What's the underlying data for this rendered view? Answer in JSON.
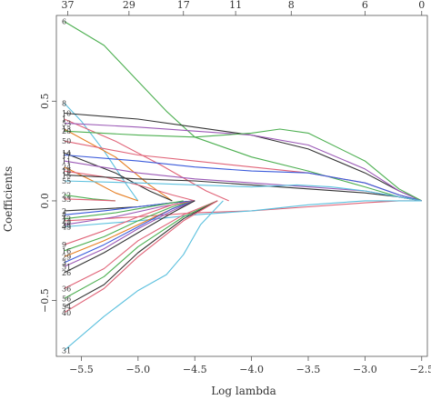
{
  "chart_data": {
    "type": "line",
    "title": "",
    "xlabel": "Log lambda",
    "ylabel": "Coefficients",
    "xlim": [
      -5.72,
      -2.45
    ],
    "ylim": [
      -0.78,
      0.93
    ],
    "x_ticks": [
      -5.5,
      -5.0,
      -4.5,
      -4.0,
      -3.5,
      -3.0,
      -2.5
    ],
    "x_tick_labels": [
      "−5.5",
      "−5.0",
      "−4.5",
      "−4.0",
      "−3.5",
      "−3.0",
      "−2.5"
    ],
    "y_ticks": [
      -0.5,
      0.0,
      0.5
    ],
    "y_tick_labels": [
      "−0.5",
      "0.0",
      "0.5"
    ],
    "top_axis": {
      "positions": [
        -5.62,
        -5.08,
        -4.6,
        -4.14,
        -3.65,
        -3.0,
        -2.5
      ],
      "labels": [
        "37",
        "29",
        "17",
        "11",
        "8",
        "6",
        "0"
      ]
    },
    "grid": false,
    "legend": "none",
    "series": [
      {
        "label": "6",
        "color": "#4caf50",
        "x": [
          -5.65,
          -5.3,
          -5.0,
          -4.75,
          -4.5,
          -4.0,
          -3.5,
          -3.0,
          -2.7,
          -2.5
        ],
        "y": [
          0.9,
          0.78,
          0.6,
          0.45,
          0.32,
          0.22,
          0.15,
          0.07,
          0.02,
          0.0
        ]
      },
      {
        "label": "8",
        "color": "#5bc0de",
        "x": [
          -5.65,
          -5.5,
          -5.3,
          -5.1,
          -5.0
        ],
        "y": [
          0.49,
          0.4,
          0.25,
          0.08,
          0.0
        ]
      },
      {
        "label": "10",
        "color": "#333333",
        "x": [
          -5.65,
          -5.0,
          -4.5,
          -4.0,
          -3.5,
          -3.0,
          -2.7,
          -2.5
        ],
        "y": [
          0.44,
          0.41,
          0.37,
          0.33,
          0.26,
          0.14,
          0.05,
          0.0
        ]
      },
      {
        "label": "1",
        "color": "#e06377",
        "x": [
          -5.65,
          -5.2,
          -4.8,
          -4.4,
          -4.2
        ],
        "y": [
          0.41,
          0.3,
          0.18,
          0.05,
          0.0
        ]
      },
      {
        "label": "53",
        "color": "#9b59b6",
        "x": [
          -5.65,
          -5.0,
          -4.5,
          -4.0,
          -3.5,
          -3.0,
          -2.7,
          -2.5
        ],
        "y": [
          0.39,
          0.37,
          0.35,
          0.33,
          0.28,
          0.16,
          0.05,
          0.0
        ]
      },
      {
        "label": "13",
        "color": "#e67e22",
        "x": [
          -5.65,
          -5.2,
          -4.9,
          -4.7
        ],
        "y": [
          0.36,
          0.22,
          0.08,
          0.0
        ]
      },
      {
        "label": "20",
        "color": "#4caf50",
        "x": [
          -5.65,
          -5.0,
          -4.5,
          -4.0,
          -3.75,
          -3.5,
          -3.0,
          -2.7,
          -2.5
        ],
        "y": [
          0.35,
          0.33,
          0.32,
          0.34,
          0.36,
          0.34,
          0.2,
          0.06,
          0.0
        ]
      },
      {
        "label": "50",
        "color": "#e06377",
        "x": [
          -5.65,
          -5.0,
          -4.5,
          -4.0,
          -3.5,
          -3.0,
          -2.7,
          -2.5
        ],
        "y": [
          0.3,
          0.23,
          0.2,
          0.17,
          0.14,
          0.09,
          0.03,
          0.0
        ]
      },
      {
        "label": "14",
        "color": "#333333",
        "x": [
          -5.65,
          -5.2,
          -4.9,
          -4.7
        ],
        "y": [
          0.24,
          0.14,
          0.05,
          0.0
        ]
      },
      {
        "label": "17",
        "color": "#3b5bdb",
        "x": [
          -5.65,
          -5.0,
          -4.5,
          -4.0,
          -3.5,
          -3.0,
          -2.7,
          -2.5
        ],
        "y": [
          0.23,
          0.2,
          0.17,
          0.15,
          0.14,
          0.09,
          0.03,
          0.0
        ]
      },
      {
        "label": "11",
        "color": "#9b59b6",
        "x": [
          -5.65,
          -5.0,
          -4.5,
          -4.0,
          -3.5,
          -3.0,
          -2.7,
          -2.5
        ],
        "y": [
          0.2,
          0.14,
          0.11,
          0.09,
          0.07,
          0.05,
          0.02,
          0.0
        ]
      },
      {
        "label": "24",
        "color": "#e67e22",
        "x": [
          -5.65,
          -5.4,
          -5.2,
          -5.0
        ],
        "y": [
          0.17,
          0.1,
          0.04,
          0.0
        ]
      },
      {
        "label": "18",
        "color": "#e06377",
        "x": [
          -5.65,
          -5.3,
          -5.0,
          -4.7,
          -4.5
        ],
        "y": [
          0.15,
          0.12,
          0.08,
          0.03,
          0.0
        ]
      },
      {
        "label": "15",
        "color": "#333333",
        "x": [
          -5.65,
          -5.0,
          -4.5,
          -4.0,
          -3.5,
          -3.0,
          -2.7,
          -2.5
        ],
        "y": [
          0.13,
          0.11,
          0.1,
          0.08,
          0.06,
          0.04,
          0.02,
          0.0
        ]
      },
      {
        "label": "55",
        "color": "#5bc0de",
        "x": [
          -5.65,
          -5.0,
          -4.5,
          -4.0,
          -3.6,
          -3.3,
          -3.0,
          -2.7,
          -2.5
        ],
        "y": [
          0.1,
          0.09,
          0.08,
          0.07,
          0.08,
          0.07,
          0.05,
          0.02,
          0.0
        ]
      },
      {
        "label": "22",
        "color": "#4caf50",
        "x": [
          -5.65,
          -5.4,
          -5.2
        ],
        "y": [
          0.03,
          0.01,
          0.0
        ]
      },
      {
        "label": "33",
        "color": "#e06377",
        "x": [
          -5.65,
          -5.4,
          -5.2
        ],
        "y": [
          0.01,
          0.005,
          0.0
        ]
      },
      {
        "label": "2",
        "color": "#333333",
        "x": [
          -5.65,
          -5.3,
          -5.0,
          -4.7,
          -4.5
        ],
        "y": [
          -0.05,
          -0.04,
          -0.03,
          -0.01,
          0.0
        ]
      },
      {
        "label": "4",
        "color": "#3b5bdb",
        "x": [
          -5.65,
          -5.3,
          -5.0,
          -4.7,
          -4.5
        ],
        "y": [
          -0.07,
          -0.05,
          -0.03,
          -0.01,
          0.0
        ]
      },
      {
        "label": "12",
        "color": "#4caf50",
        "x": [
          -5.65,
          -5.2,
          -4.8,
          -4.6
        ],
        "y": [
          -0.09,
          -0.06,
          -0.02,
          0.0
        ]
      },
      {
        "label": "23",
        "color": "#e06377",
        "x": [
          -5.65,
          -5.0,
          -4.5,
          -4.0,
          -3.5,
          -3.0,
          -2.7,
          -2.5
        ],
        "y": [
          -0.1,
          -0.08,
          -0.06,
          -0.05,
          -0.03,
          -0.01,
          0.0,
          0.0
        ]
      },
      {
        "label": "38",
        "color": "#9b59b6",
        "x": [
          -5.65,
          -5.2,
          -4.8,
          -4.5
        ],
        "y": [
          -0.12,
          -0.08,
          -0.03,
          0.0
        ]
      },
      {
        "label": "43",
        "color": "#5bc0de",
        "x": [
          -5.65,
          -5.0,
          -4.5,
          -4.0,
          -3.5,
          -3.0,
          -2.7,
          -2.5
        ],
        "y": [
          -0.13,
          -0.1,
          -0.07,
          -0.05,
          -0.02,
          0.0,
          0.0,
          0.0
        ]
      },
      {
        "label": "9",
        "color": "#e06377",
        "x": [
          -5.65,
          -5.3,
          -5.0,
          -4.7,
          -4.5
        ],
        "y": [
          -0.22,
          -0.15,
          -0.08,
          -0.02,
          0.0
        ]
      },
      {
        "label": "16",
        "color": "#4caf50",
        "x": [
          -5.65,
          -5.3,
          -5.0,
          -4.7,
          -4.5
        ],
        "y": [
          -0.25,
          -0.18,
          -0.1,
          -0.03,
          0.0
        ]
      },
      {
        "label": "29",
        "color": "#e67e22",
        "x": [
          -5.65,
          -5.3,
          -5.0,
          -4.7,
          -4.5
        ],
        "y": [
          -0.28,
          -0.2,
          -0.12,
          -0.04,
          0.0
        ]
      },
      {
        "label": "3",
        "color": "#3b5bdb",
        "x": [
          -5.65,
          -5.3,
          -5.0,
          -4.7,
          -4.5
        ],
        "y": [
          -0.31,
          -0.22,
          -0.13,
          -0.04,
          0.0
        ]
      },
      {
        "label": "51",
        "color": "#9b59b6",
        "x": [
          -5.65,
          -5.3,
          -5.0,
          -4.7,
          -4.5
        ],
        "y": [
          -0.33,
          -0.24,
          -0.14,
          -0.05,
          0.0
        ]
      },
      {
        "label": "26",
        "color": "#333333",
        "x": [
          -5.65,
          -5.3,
          -5.0,
          -4.7,
          -4.5
        ],
        "y": [
          -0.36,
          -0.26,
          -0.16,
          -0.06,
          0.0
        ]
      },
      {
        "label": "36",
        "color": "#e06377",
        "x": [
          -5.65,
          -5.3,
          -5.0,
          -4.6,
          -4.3
        ],
        "y": [
          -0.44,
          -0.34,
          -0.2,
          -0.07,
          0.0
        ]
      },
      {
        "label": "56",
        "color": "#4caf50",
        "x": [
          -5.65,
          -5.3,
          -5.0,
          -4.6,
          -4.3
        ],
        "y": [
          -0.49,
          -0.38,
          -0.23,
          -0.08,
          0.0
        ]
      },
      {
        "label": "54",
        "color": "#333333",
        "x": [
          -5.65,
          -5.3,
          -5.0,
          -4.6,
          -4.3
        ],
        "y": [
          -0.53,
          -0.42,
          -0.26,
          -0.09,
          0.0
        ]
      },
      {
        "label": "40",
        "color": "#e06377",
        "x": [
          -5.65,
          -5.3,
          -5.0,
          -4.6,
          -4.3
        ],
        "y": [
          -0.56,
          -0.44,
          -0.28,
          -0.1,
          0.0
        ]
      },
      {
        "label": "31",
        "color": "#5bc0de",
        "x": [
          -5.65,
          -5.3,
          -5.0,
          -4.75,
          -4.6,
          -4.45,
          -4.25
        ],
        "y": [
          -0.75,
          -0.58,
          -0.45,
          -0.37,
          -0.27,
          -0.12,
          0.0
        ]
      }
    ]
  }
}
